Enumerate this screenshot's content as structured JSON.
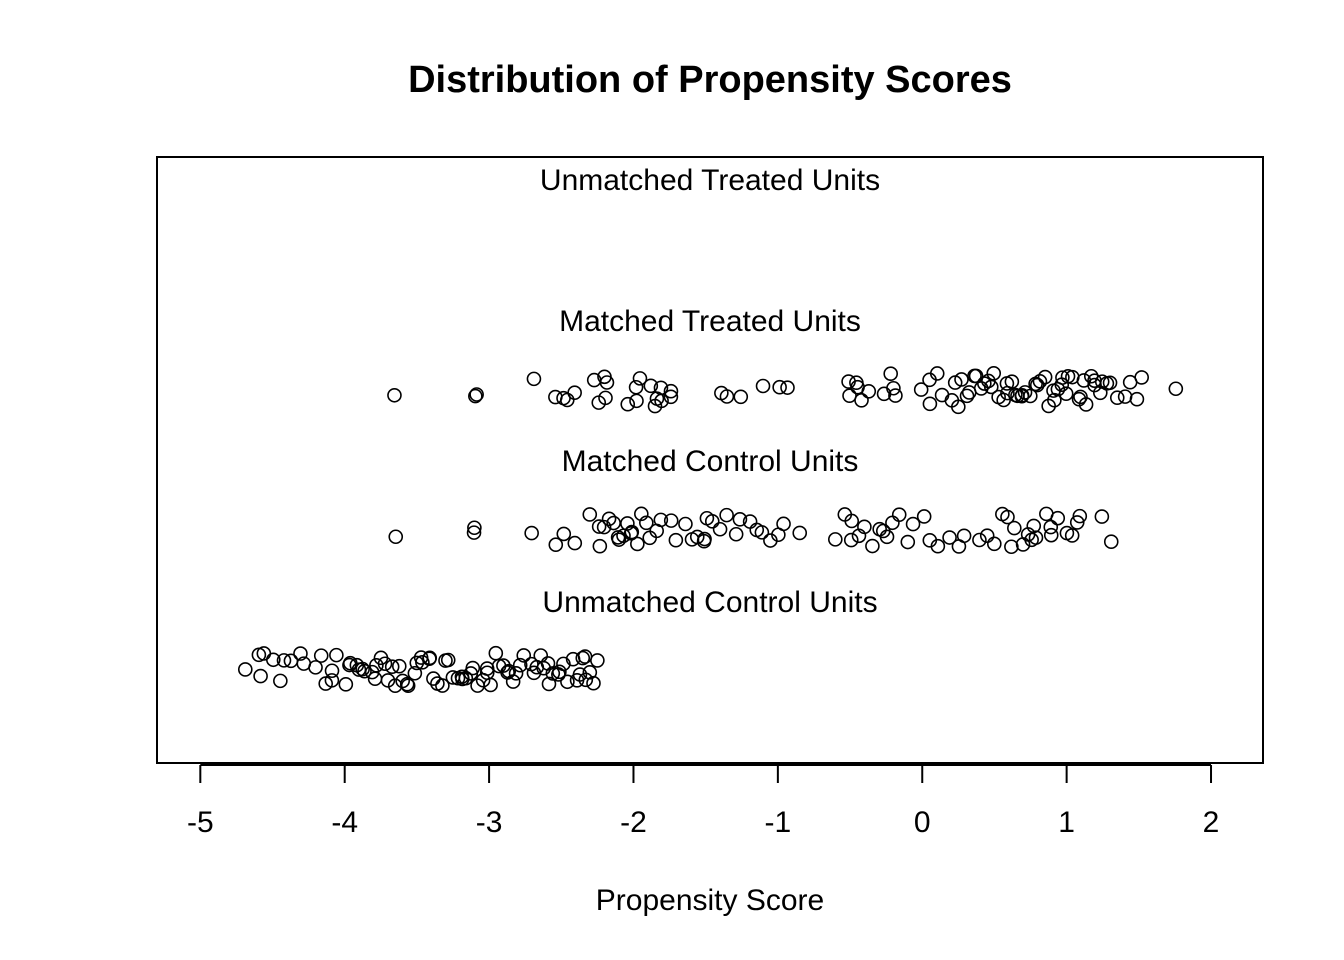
{
  "chart_data": {
    "type": "scatter",
    "title": "Distribution of Propensity Scores",
    "xlabel": "Propensity Score",
    "ylabel": "",
    "xlim": [
      -5.3,
      2.36
    ],
    "xticks": [
      -5,
      -4,
      -3,
      -2,
      -1,
      0,
      1,
      2
    ],
    "xtick_labels": [
      "-5",
      "-4",
      "-3",
      "-2",
      "-1",
      "0",
      "1",
      "2"
    ],
    "y_axis_shown": false,
    "grid": false,
    "legend": "none",
    "marker": "open-circle",
    "groups": [
      {
        "label": "Unmatched Treated Units",
        "values": []
      },
      {
        "label": "Matched Treated Units",
        "values": [
          -3.65,
          -3.1,
          -3.1,
          -2.7,
          -2.55,
          -2.48,
          -2.45,
          -2.4,
          -2.28,
          -2.25,
          -2.2,
          -2.19,
          -2.18,
          -2.05,
          -1.98,
          -1.97,
          -1.95,
          -1.88,
          -1.85,
          -1.83,
          -1.82,
          -1.8,
          -1.75,
          -1.73,
          -1.38,
          -1.35,
          -1.25,
          -1.1,
          -1.0,
          -0.92,
          -0.5,
          -0.49,
          -0.45,
          -0.44,
          -0.42,
          -0.38,
          -0.27,
          -0.22,
          -0.2,
          -0.18,
          -0.02,
          0.05,
          0.05,
          0.1,
          0.14,
          0.2,
          0.22,
          0.25,
          0.27,
          0.3,
          0.32,
          0.35,
          0.38,
          0.4,
          0.42,
          0.45,
          0.48,
          0.5,
          0.52,
          0.55,
          0.58,
          0.6,
          0.62,
          0.64,
          0.66,
          0.68,
          0.7,
          0.72,
          0.75,
          0.78,
          0.8,
          0.82,
          0.85,
          0.87,
          0.9,
          0.92,
          0.94,
          0.96,
          0.98,
          1.0,
          1.02,
          1.05,
          1.08,
          1.1,
          1.12,
          1.14,
          1.16,
          1.18,
          1.2,
          1.22,
          1.24,
          1.27,
          1.3,
          1.35,
          1.4,
          1.45,
          1.5,
          1.52,
          1.76
        ]
      },
      {
        "label": "Matched Control Units",
        "values": [
          -3.65,
          -3.1,
          -3.1,
          -2.7,
          -2.55,
          -2.48,
          -2.4,
          -2.3,
          -2.25,
          -2.22,
          -2.2,
          -2.18,
          -2.15,
          -2.12,
          -2.1,
          -2.08,
          -2.05,
          -2.02,
          -2.0,
          -1.98,
          -1.95,
          -1.92,
          -1.9,
          -1.85,
          -1.8,
          -1.75,
          -1.7,
          -1.65,
          -1.6,
          -1.55,
          -1.52,
          -1.5,
          -1.48,
          -1.45,
          -1.4,
          -1.35,
          -1.3,
          -1.25,
          -1.2,
          -1.15,
          -1.1,
          -1.05,
          -1.0,
          -0.95,
          -0.85,
          -0.6,
          -0.55,
          -0.5,
          -0.48,
          -0.45,
          -0.4,
          -0.35,
          -0.3,
          -0.27,
          -0.25,
          -0.2,
          -0.15,
          -0.1,
          -0.05,
          0.0,
          0.05,
          0.1,
          0.18,
          0.25,
          0.3,
          0.4,
          0.45,
          0.5,
          0.55,
          0.6,
          0.62,
          0.65,
          0.7,
          0.72,
          0.75,
          0.78,
          0.8,
          0.85,
          0.88,
          0.9,
          0.95,
          1.0,
          1.05,
          1.08,
          1.1,
          1.25,
          1.32
        ]
      },
      {
        "label": "Unmatched Control Units",
        "values": [
          -4.7,
          -4.6,
          -4.58,
          -4.55,
          -4.5,
          -4.45,
          -4.42,
          -4.38,
          -4.3,
          -4.28,
          -4.2,
          -4.15,
          -4.12,
          -4.1,
          -4.08,
          -4.05,
          -4.0,
          -3.98,
          -3.95,
          -3.92,
          -3.9,
          -3.88,
          -3.85,
          -3.82,
          -3.8,
          -3.78,
          -3.75,
          -3.72,
          -3.7,
          -3.68,
          -3.65,
          -3.62,
          -3.6,
          -3.58,
          -3.55,
          -3.52,
          -3.5,
          -3.48,
          -3.45,
          -3.42,
          -3.4,
          -3.38,
          -3.35,
          -3.32,
          -3.3,
          -3.28,
          -3.25,
          -3.22,
          -3.2,
          -3.18,
          -3.15,
          -3.12,
          -3.1,
          -3.08,
          -3.05,
          -3.02,
          -3.0,
          -2.98,
          -2.95,
          -2.92,
          -2.9,
          -2.88,
          -2.85,
          -2.82,
          -2.8,
          -2.78,
          -2.75,
          -2.72,
          -2.7,
          -2.68,
          -2.65,
          -2.62,
          -2.6,
          -2.58,
          -2.55,
          -2.52,
          -2.5,
          -2.48,
          -2.45,
          -2.42,
          -2.4,
          -2.38,
          -2.36,
          -2.34,
          -2.32,
          -2.3,
          -2.28,
          -2.26
        ]
      }
    ]
  }
}
